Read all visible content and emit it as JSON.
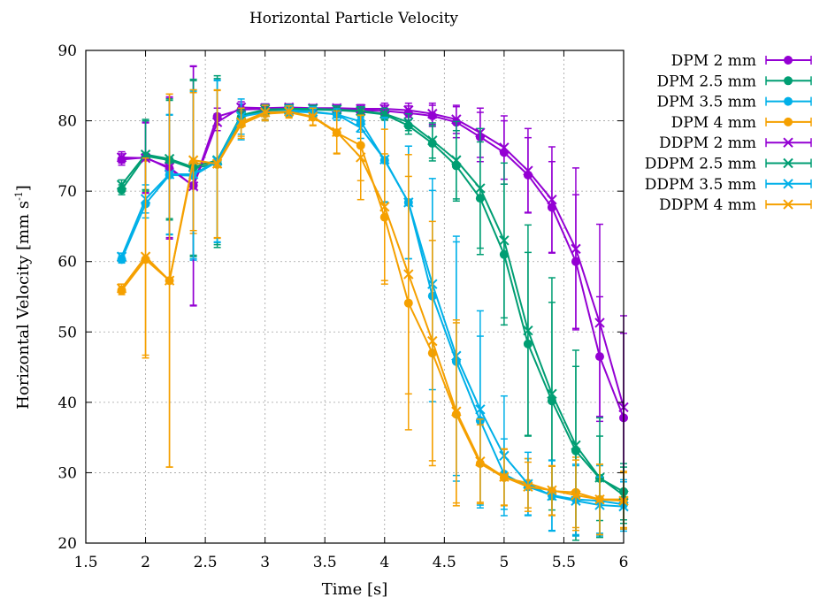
{
  "chart_data": {
    "type": "line",
    "title": "Horizontal Particle Velocity",
    "xlabel": "Time [s]",
    "ylabel": "Horizontal Velocity [mm s",
    "ylabel_sup": "-1",
    "ylabel_close": "]",
    "xlim": [
      1.5,
      6
    ],
    "ylim": [
      20,
      90
    ],
    "xticks": [
      1.5,
      2,
      2.5,
      3,
      3.5,
      4,
      4.5,
      5,
      5.5,
      6
    ],
    "yticks": [
      20,
      30,
      40,
      50,
      60,
      70,
      80,
      90
    ],
    "xtick_labels": [
      "1.5",
      "2",
      "2.5",
      "3",
      "3.5",
      "4",
      "4.5",
      "5",
      "5.5",
      "6"
    ],
    "ytick_labels": [
      "20",
      "30",
      "40",
      "50",
      "60",
      "70",
      "80",
      "90"
    ],
    "grid": true,
    "legend_position": "outside-right",
    "x": [
      1.8,
      2.0,
      2.2,
      2.4,
      2.6,
      2.8,
      3.0,
      3.2,
      3.4,
      3.6,
      3.8,
      4.0,
      4.2,
      4.4,
      4.6,
      4.8,
      5.0,
      5.2,
      5.4,
      5.6,
      5.8,
      6.0
    ],
    "series": [
      {
        "name": "DPM 2 mm",
        "color": "#9400d3",
        "marker": "circle",
        "values": [
          74.5,
          74.8,
          73.2,
          70.8,
          80.6,
          81.6,
          81.7,
          81.8,
          81.7,
          81.6,
          81.5,
          81.4,
          81.1,
          80.7,
          79.8,
          77.7,
          75.5,
          72.3,
          67.7,
          60.0,
          46.5,
          37.8
        ],
        "err": [
          0.8,
          5.0,
          10.0,
          17.0,
          1.2,
          0.8,
          0.6,
          0.5,
          0.5,
          0.5,
          0.6,
          0.8,
          1.0,
          1.5,
          2.2,
          3.5,
          4.5,
          5.3,
          6.5,
          9.5,
          8.5,
          12.0
        ]
      },
      {
        "name": "DPM 2.5 mm",
        "color": "#009e73",
        "marker": "circle",
        "values": [
          70.2,
          75.0,
          74.4,
          73.2,
          74.0,
          80.5,
          81.5,
          81.6,
          81.6,
          81.5,
          81.3,
          80.9,
          79.3,
          76.8,
          73.6,
          69.0,
          61.0,
          48.3,
          40.2,
          33.1,
          29.2,
          27.3
        ],
        "err": [
          0.7,
          5.0,
          8.5,
          12.5,
          12.0,
          0.8,
          0.7,
          0.6,
          0.5,
          0.5,
          0.6,
          0.8,
          1.2,
          2.5,
          5.0,
          8.0,
          10.0,
          13.0,
          14.0,
          12.0,
          6.0,
          4.0
        ]
      },
      {
        "name": "DPM 3.5 mm",
        "color": "#00b0e8",
        "marker": "circle",
        "values": [
          60.3,
          68.2,
          72.3,
          72.2,
          74.2,
          79.8,
          81.0,
          81.3,
          81.2,
          80.9,
          79.9,
          74.4,
          68.4,
          55.1,
          45.8,
          37.4,
          29.8,
          28.0,
          26.8,
          26.2,
          26.0,
          25.5
        ],
        "err": [
          0.5,
          2.0,
          8.5,
          12.0,
          11.5,
          2.5,
          1.0,
          0.7,
          0.7,
          0.8,
          1.5,
          6.0,
          8.0,
          15.0,
          17.0,
          12.0,
          5.0,
          4.0,
          5.0,
          5.0,
          5.0,
          3.5
        ]
      },
      {
        "name": "DPM 4 mm",
        "color": "#f5a000",
        "marker": "circle",
        "values": [
          55.9,
          60.3,
          57.3,
          74.0,
          73.8,
          79.5,
          81.0,
          81.2,
          80.5,
          78.3,
          76.5,
          66.3,
          54.1,
          47.0,
          38.3,
          31.3,
          29.3,
          28.5,
          27.4,
          27.2,
          26.2,
          26.2
        ],
        "err": [
          0.6,
          14.0,
          26.5,
          10.0,
          10.5,
          2.0,
          1.0,
          0.8,
          1.2,
          3.0,
          5.0,
          9.0,
          18.0,
          16.0,
          13.0,
          5.5,
          4.0,
          3.5,
          3.5,
          5.0,
          5.0,
          4.0
        ]
      },
      {
        "name": "DDPM 2 mm",
        "color": "#9400d3",
        "marker": "cross",
        "values": [
          74.8,
          74.7,
          73.4,
          70.7,
          79.8,
          81.9,
          81.8,
          81.9,
          81.8,
          81.8,
          81.7,
          81.7,
          81.5,
          81.0,
          80.2,
          78.3,
          76.2,
          72.9,
          68.8,
          61.8,
          51.3,
          39.3
        ],
        "err": [
          0.8,
          5.0,
          10.0,
          17.0,
          1.2,
          0.8,
          0.6,
          0.5,
          0.5,
          0.5,
          0.6,
          0.8,
          1.0,
          1.5,
          2.0,
          3.5,
          4.5,
          6.0,
          7.5,
          11.5,
          14.0,
          13.0
        ]
      },
      {
        "name": "DDPM 2.5 mm",
        "color": "#009e73",
        "marker": "cross",
        "values": [
          70.9,
          75.2,
          74.6,
          73.4,
          74.4,
          80.8,
          81.6,
          81.7,
          81.7,
          81.6,
          81.4,
          81.0,
          79.8,
          77.2,
          74.4,
          70.4,
          63.0,
          50.2,
          41.2,
          33.9,
          29.3,
          26.8
        ],
        "err": [
          0.7,
          5.0,
          8.5,
          12.5,
          12.0,
          0.8,
          0.7,
          0.6,
          0.5,
          0.5,
          0.6,
          0.8,
          1.2,
          2.5,
          5.5,
          8.5,
          11.0,
          15.0,
          16.5,
          13.5,
          8.5,
          4.0
        ]
      },
      {
        "name": "DDPM 3.5 mm",
        "color": "#00b0e8",
        "marker": "cross",
        "values": [
          60.7,
          68.9,
          72.4,
          72.4,
          74.3,
          80.6,
          81.2,
          81.5,
          81.3,
          80.9,
          79.0,
          74.5,
          68.4,
          56.8,
          46.6,
          39.0,
          32.4,
          28.4,
          26.7,
          26.0,
          25.4,
          25.2
        ],
        "err": [
          0.5,
          2.0,
          8.5,
          12.0,
          11.5,
          2.5,
          1.0,
          0.7,
          0.7,
          0.8,
          1.5,
          6.0,
          8.0,
          15.0,
          17.0,
          14.0,
          8.5,
          4.5,
          5.0,
          5.0,
          4.0,
          3.5
        ]
      },
      {
        "name": "DDPM 4 mm",
        "color": "#f5a000",
        "marker": "cross",
        "values": [
          56.2,
          60.7,
          57.3,
          74.4,
          73.9,
          79.8,
          81.2,
          81.3,
          80.6,
          78.4,
          74.8,
          67.8,
          58.2,
          48.7,
          38.7,
          31.6,
          29.4,
          28.0,
          27.5,
          26.8,
          26.2,
          26.0
        ],
        "err": [
          0.6,
          14.0,
          26.5,
          10.0,
          10.5,
          2.0,
          1.0,
          0.8,
          1.2,
          3.0,
          6.0,
          11.0,
          17.0,
          17.0,
          13.0,
          6.0,
          4.0,
          3.5,
          3.5,
          5.0,
          5.0,
          4.0
        ]
      }
    ]
  }
}
